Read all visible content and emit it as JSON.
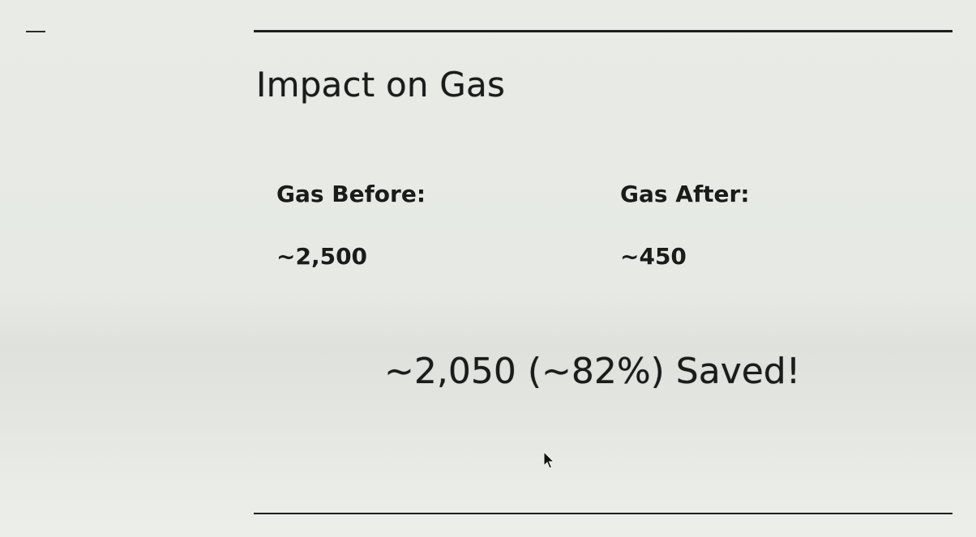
{
  "slide": {
    "title": "Impact on Gas",
    "before": {
      "label": "Gas Before:",
      "value": "~2,500"
    },
    "after": {
      "label": "Gas After:",
      "value": "~450"
    },
    "summary": "~2,050 (~82%) Saved!"
  },
  "icons": {
    "cursor": "mouse-pointer-icon"
  },
  "colors": {
    "background": "#e8ebe6",
    "text": "#1b1b1b",
    "rule": "#1e1e1e"
  }
}
